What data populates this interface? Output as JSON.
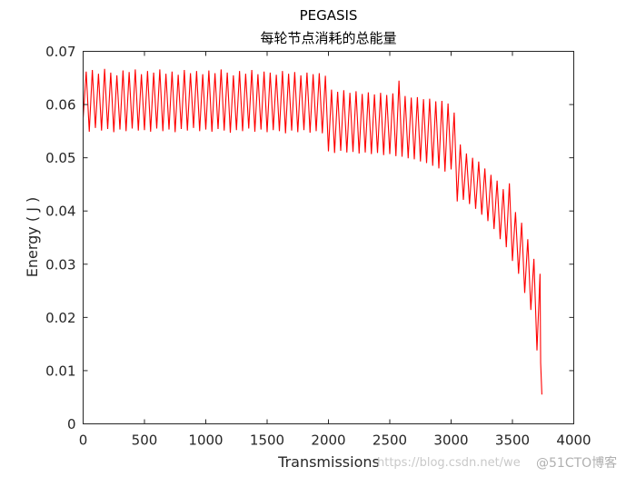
{
  "chart_data": {
    "type": "line",
    "title": "PEGASIS",
    "subtitle": "每轮节点消耗的总能量",
    "xlabel": "Transmissions",
    "ylabel": "Energy ( J )",
    "xlim": [
      0,
      4000
    ],
    "ylim": [
      0,
      0.07
    ],
    "x_ticks": [
      0,
      500,
      1000,
      1500,
      2000,
      2500,
      3000,
      3500,
      4000
    ],
    "x_tick_labels": [
      "0",
      "500",
      "1000",
      "1500",
      "2000",
      "2500",
      "3000",
      "3500",
      "4000"
    ],
    "y_ticks": [
      0,
      0.01,
      0.02,
      0.03,
      0.04,
      0.05,
      0.06,
      0.07
    ],
    "y_tick_labels": [
      "0",
      "0.01",
      "0.02",
      "0.03",
      "0.04",
      "0.05",
      "0.06",
      "0.07"
    ],
    "grid": false,
    "legend": "none",
    "series": [
      {
        "color": "#ff0000",
        "x": [
          0,
          25,
          50,
          75,
          100,
          125,
          150,
          175,
          200,
          225,
          250,
          275,
          300,
          325,
          350,
          375,
          400,
          425,
          450,
          475,
          500,
          525,
          550,
          575,
          600,
          625,
          650,
          675,
          700,
          725,
          750,
          775,
          800,
          825,
          850,
          875,
          900,
          925,
          950,
          975,
          1000,
          1025,
          1050,
          1075,
          1100,
          1125,
          1150,
          1175,
          1200,
          1225,
          1250,
          1275,
          1300,
          1325,
          1350,
          1375,
          1400,
          1425,
          1450,
          1475,
          1500,
          1525,
          1550,
          1575,
          1600,
          1625,
          1650,
          1675,
          1700,
          1725,
          1750,
          1775,
          1800,
          1825,
          1850,
          1875,
          1900,
          1925,
          1950,
          1975,
          2000,
          2025,
          2050,
          2075,
          2100,
          2125,
          2150,
          2175,
          2200,
          2225,
          2250,
          2275,
          2300,
          2325,
          2350,
          2375,
          2400,
          2425,
          2450,
          2475,
          2500,
          2525,
          2550,
          2575,
          2600,
          2625,
          2650,
          2675,
          2700,
          2725,
          2750,
          2775,
          2800,
          2825,
          2850,
          2875,
          2900,
          2925,
          2950,
          2975,
          3000,
          3025,
          3050,
          3075,
          3100,
          3125,
          3150,
          3175,
          3200,
          3225,
          3250,
          3275,
          3300,
          3325,
          3350,
          3375,
          3400,
          3425,
          3450,
          3475,
          3500,
          3525,
          3550,
          3575,
          3600,
          3625,
          3650,
          3675,
          3700,
          3725,
          3730,
          3735,
          3740
        ],
        "y": [
          0.0575,
          0.0662,
          0.0549,
          0.0665,
          0.0556,
          0.0658,
          0.0551,
          0.0667,
          0.0554,
          0.066,
          0.0548,
          0.0655,
          0.0553,
          0.0664,
          0.055,
          0.0661,
          0.0555,
          0.0666,
          0.0551,
          0.0657,
          0.0552,
          0.0663,
          0.0549,
          0.066,
          0.0555,
          0.0666,
          0.055,
          0.0658,
          0.0553,
          0.0662,
          0.0548,
          0.0656,
          0.0554,
          0.0665,
          0.0551,
          0.0659,
          0.0556,
          0.0663,
          0.055,
          0.0657,
          0.0553,
          0.0664,
          0.0549,
          0.0659,
          0.0554,
          0.0666,
          0.0551,
          0.066,
          0.0547,
          0.0655,
          0.0552,
          0.0663,
          0.055,
          0.0658,
          0.0555,
          0.0665,
          0.0549,
          0.0657,
          0.0553,
          0.0662,
          0.0548,
          0.066,
          0.0552,
          0.0656,
          0.055,
          0.0663,
          0.0546,
          0.0658,
          0.0551,
          0.0661,
          0.0548,
          0.0655,
          0.0552,
          0.066,
          0.0547,
          0.0657,
          0.055,
          0.0659,
          0.0546,
          0.0654,
          0.0512,
          0.0628,
          0.0509,
          0.0624,
          0.0513,
          0.0627,
          0.051,
          0.0622,
          0.0511,
          0.0625,
          0.0508,
          0.062,
          0.051,
          0.0623,
          0.0507,
          0.0619,
          0.0509,
          0.0622,
          0.0505,
          0.0618,
          0.0507,
          0.0621,
          0.0503,
          0.0645,
          0.0502,
          0.0616,
          0.0499,
          0.0613,
          0.0497,
          0.0614,
          0.0493,
          0.061,
          0.049,
          0.0611,
          0.0485,
          0.0606,
          0.048,
          0.0607,
          0.0474,
          0.0602,
          0.0478,
          0.0585,
          0.0418,
          0.0525,
          0.0421,
          0.0508,
          0.0413,
          0.05,
          0.0404,
          0.0493,
          0.0393,
          0.048,
          0.0381,
          0.0468,
          0.0366,
          0.0457,
          0.0347,
          0.0441,
          0.0332,
          0.0452,
          0.0306,
          0.0398,
          0.0282,
          0.0378,
          0.0246,
          0.0347,
          0.0214,
          0.031,
          0.0138,
          0.0282,
          0.0115,
          0.0085,
          0.0055
        ]
      }
    ]
  },
  "watermark": {
    "url": "https://blog.csdn.net/we",
    "site": "@51CTO博客"
  }
}
